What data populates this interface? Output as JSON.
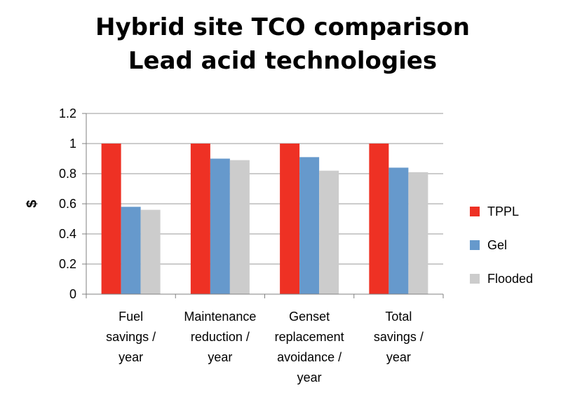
{
  "chart_data": {
    "type": "bar",
    "title": [
      "Hybrid site TCO comparison",
      "Lead acid technologies"
    ],
    "ylabel": "$",
    "xlabel": "",
    "ylim": [
      0,
      1.2
    ],
    "yticks": [
      "0",
      "0.2",
      "0.4",
      "0.6",
      "0.8",
      "1",
      "1.2"
    ],
    "categories": [
      [
        "Fuel",
        "savings /",
        "year"
      ],
      [
        "Maintenance",
        "reduction /",
        "year"
      ],
      [
        "Genset",
        "replacement",
        "avoidance /",
        "year"
      ],
      [
        "Total",
        "savings /",
        "year"
      ]
    ],
    "series": [
      {
        "name": "TPPL",
        "color": "#ee3124",
        "values": [
          1.0,
          1.0,
          1.0,
          1.0
        ]
      },
      {
        "name": "Gel",
        "color": "#6699cc",
        "values": [
          0.58,
          0.9,
          0.91,
          0.84
        ]
      },
      {
        "name": "Flooded",
        "color": "#cccccc",
        "values": [
          0.56,
          0.89,
          0.82,
          0.81
        ]
      }
    ],
    "grid": true,
    "legend": "right"
  }
}
